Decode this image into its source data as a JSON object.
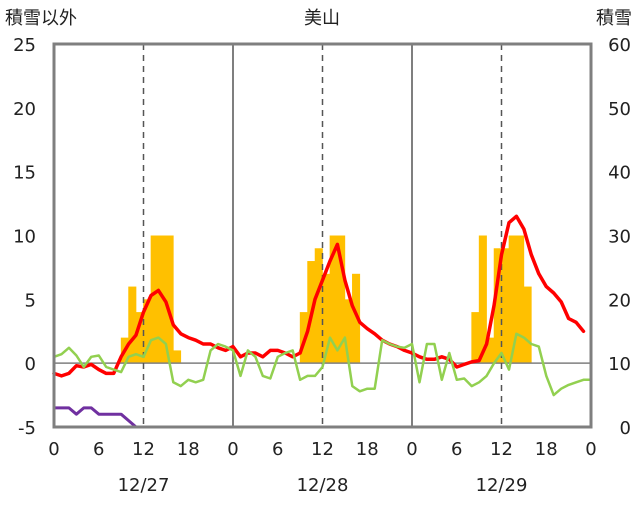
{
  "chart_data": {
    "type": "bar+line",
    "title": "美山",
    "left_axis": {
      "label": "積雪以外",
      "ylim": [
        -5,
        25
      ],
      "ticks": [
        -5,
        0,
        5,
        10,
        15,
        20,
        25
      ]
    },
    "right_axis": {
      "label": "積雪",
      "ylim": [
        0,
        60
      ],
      "ticks": [
        0,
        10,
        20,
        30,
        40,
        50,
        60
      ]
    },
    "x_axis": {
      "hours_range": [
        0,
        72
      ],
      "tick_hours": [
        0,
        6,
        12,
        18,
        24,
        30,
        36,
        42,
        48,
        54,
        60,
        66,
        72
      ],
      "tick_labels": [
        "0",
        "6",
        "12",
        "18",
        "0",
        "6",
        "12",
        "18",
        "0",
        "6",
        "12",
        "18",
        "0"
      ],
      "dates": [
        {
          "label": "12/27",
          "hour": 12
        },
        {
          "label": "12/28",
          "hour": 36
        },
        {
          "label": "12/29",
          "hour": 60
        }
      ],
      "day_boundaries": [
        24,
        48
      ],
      "noon_lines": [
        12,
        36,
        60
      ]
    },
    "precipitation_bars": {
      "axis": "left",
      "color": "#FFC000",
      "values": [
        [
          9,
          2
        ],
        [
          10,
          6
        ],
        [
          11,
          4
        ],
        [
          12,
          5
        ],
        [
          13,
          10
        ],
        [
          14,
          10
        ],
        [
          15,
          10
        ],
        [
          16,
          1
        ],
        [
          33,
          4
        ],
        [
          34,
          8
        ],
        [
          35,
          9
        ],
        [
          36,
          7
        ],
        [
          37,
          10
        ],
        [
          38,
          10
        ],
        [
          39,
          5
        ],
        [
          40,
          7
        ],
        [
          56,
          4
        ],
        [
          57,
          10
        ],
        [
          58,
          2
        ],
        [
          59,
          9
        ],
        [
          60,
          9
        ],
        [
          61,
          10
        ],
        [
          62,
          10
        ],
        [
          63,
          6
        ]
      ]
    },
    "series": [
      {
        "axis": "left",
        "color": "#FF0000",
        "width": 3.5,
        "points": [
          [
            0,
            -0.8
          ],
          [
            1,
            -1.0
          ],
          [
            2,
            -0.8
          ],
          [
            3,
            -0.2
          ],
          [
            4,
            -0.3
          ],
          [
            5,
            -0.1
          ],
          [
            6,
            -0.5
          ],
          [
            7,
            -0.8
          ],
          [
            8,
            -0.8
          ],
          [
            9,
            0.5
          ],
          [
            10,
            1.5
          ],
          [
            11,
            2.2
          ],
          [
            12,
            4.0
          ],
          [
            13,
            5.3
          ],
          [
            14,
            5.7
          ],
          [
            15,
            4.8
          ],
          [
            16,
            3.0
          ],
          [
            17,
            2.3
          ],
          [
            18,
            2.0
          ],
          [
            19,
            1.8
          ],
          [
            20,
            1.5
          ],
          [
            21,
            1.5
          ],
          [
            22,
            1.2
          ],
          [
            23,
            1.0
          ],
          [
            24,
            1.3
          ],
          [
            25,
            0.5
          ],
          [
            26,
            0.8
          ],
          [
            27,
            0.8
          ],
          [
            28,
            0.5
          ],
          [
            29,
            1.0
          ],
          [
            30,
            1.0
          ],
          [
            31,
            0.8
          ],
          [
            32,
            0.5
          ],
          [
            33,
            0.8
          ],
          [
            34,
            2.5
          ],
          [
            35,
            5.0
          ],
          [
            36,
            6.5
          ],
          [
            37,
            8.0
          ],
          [
            38,
            9.3
          ],
          [
            39,
            6.5
          ],
          [
            40,
            4.5
          ],
          [
            41,
            3.2
          ],
          [
            42,
            2.7
          ],
          [
            43,
            2.3
          ],
          [
            44,
            1.8
          ],
          [
            45,
            1.5
          ],
          [
            46,
            1.3
          ],
          [
            47,
            1.0
          ],
          [
            48,
            0.8
          ],
          [
            49,
            0.5
          ],
          [
            50,
            0.3
          ],
          [
            51,
            0.3
          ],
          [
            52,
            0.5
          ],
          [
            53,
            0.3
          ],
          [
            54,
            -0.3
          ],
          [
            55,
            -0.1
          ],
          [
            56,
            0.1
          ],
          [
            57,
            0.2
          ],
          [
            58,
            1.5
          ],
          [
            59,
            4.5
          ],
          [
            60,
            8.5
          ],
          [
            61,
            11.0
          ],
          [
            62,
            11.5
          ],
          [
            63,
            10.5
          ],
          [
            64,
            8.5
          ],
          [
            65,
            7.0
          ],
          [
            66,
            6.0
          ],
          [
            67,
            5.5
          ],
          [
            68,
            4.8
          ],
          [
            69,
            3.5
          ],
          [
            70,
            3.2
          ],
          [
            71,
            2.5
          ]
        ]
      },
      {
        "axis": "left",
        "color": "#92D050",
        "width": 2.5,
        "points": [
          [
            0,
            0.5
          ],
          [
            1,
            0.7
          ],
          [
            2,
            1.2
          ],
          [
            3,
            0.6
          ],
          [
            4,
            -0.3
          ],
          [
            5,
            0.5
          ],
          [
            6,
            0.6
          ],
          [
            7,
            -0.3
          ],
          [
            8,
            -0.5
          ],
          [
            9,
            -0.7
          ],
          [
            10,
            0.5
          ],
          [
            11,
            0.7
          ],
          [
            12,
            0.5
          ],
          [
            13,
            1.8
          ],
          [
            14,
            2.0
          ],
          [
            15,
            1.5
          ],
          [
            16,
            -1.5
          ],
          [
            17,
            -1.8
          ],
          [
            18,
            -1.3
          ],
          [
            19,
            -1.5
          ],
          [
            20,
            -1.3
          ],
          [
            21,
            1.0
          ],
          [
            22,
            1.5
          ],
          [
            23,
            1.3
          ],
          [
            24,
            1.0
          ],
          [
            25,
            -1.0
          ],
          [
            26,
            1.0
          ],
          [
            27,
            0.5
          ],
          [
            28,
            -1.0
          ],
          [
            29,
            -1.2
          ],
          [
            30,
            0.5
          ],
          [
            31,
            0.8
          ],
          [
            32,
            1.0
          ],
          [
            33,
            -1.3
          ],
          [
            34,
            -1.0
          ],
          [
            35,
            -1.0
          ],
          [
            36,
            -0.3
          ],
          [
            37,
            2.0
          ],
          [
            38,
            1.0
          ],
          [
            39,
            2.0
          ],
          [
            40,
            -1.8
          ],
          [
            41,
            -2.2
          ],
          [
            42,
            -2.0
          ],
          [
            43,
            -2.0
          ],
          [
            44,
            1.8
          ],
          [
            45,
            1.5
          ],
          [
            46,
            1.3
          ],
          [
            47,
            1.2
          ],
          [
            48,
            1.5
          ],
          [
            49,
            -1.5
          ],
          [
            50,
            1.5
          ],
          [
            51,
            1.5
          ],
          [
            52,
            -1.3
          ],
          [
            53,
            0.8
          ],
          [
            54,
            -1.3
          ],
          [
            55,
            -1.2
          ],
          [
            56,
            -1.8
          ],
          [
            57,
            -1.5
          ],
          [
            58,
            -1.0
          ],
          [
            59,
            0.0
          ],
          [
            60,
            0.8
          ],
          [
            61,
            -0.5
          ],
          [
            62,
            2.3
          ],
          [
            63,
            2.0
          ],
          [
            64,
            1.5
          ],
          [
            65,
            1.3
          ],
          [
            66,
            -1.0
          ],
          [
            67,
            -2.5
          ],
          [
            68,
            -2.0
          ],
          [
            69,
            -1.7
          ],
          [
            70,
            -1.5
          ],
          [
            71,
            -1.3
          ],
          [
            72,
            -1.3
          ]
        ]
      },
      {
        "axis": "right",
        "color": "#7030A0",
        "width": 3,
        "points": [
          [
            0,
            3
          ],
          [
            1,
            3
          ],
          [
            2,
            3
          ],
          [
            3,
            2
          ],
          [
            4,
            3
          ],
          [
            5,
            3
          ],
          [
            6,
            2
          ],
          [
            7,
            2
          ],
          [
            8,
            2
          ],
          [
            9,
            2
          ],
          [
            10,
            1
          ],
          [
            11,
            0
          ],
          [
            12,
            0
          ],
          [
            72,
            0
          ]
        ]
      }
    ]
  }
}
